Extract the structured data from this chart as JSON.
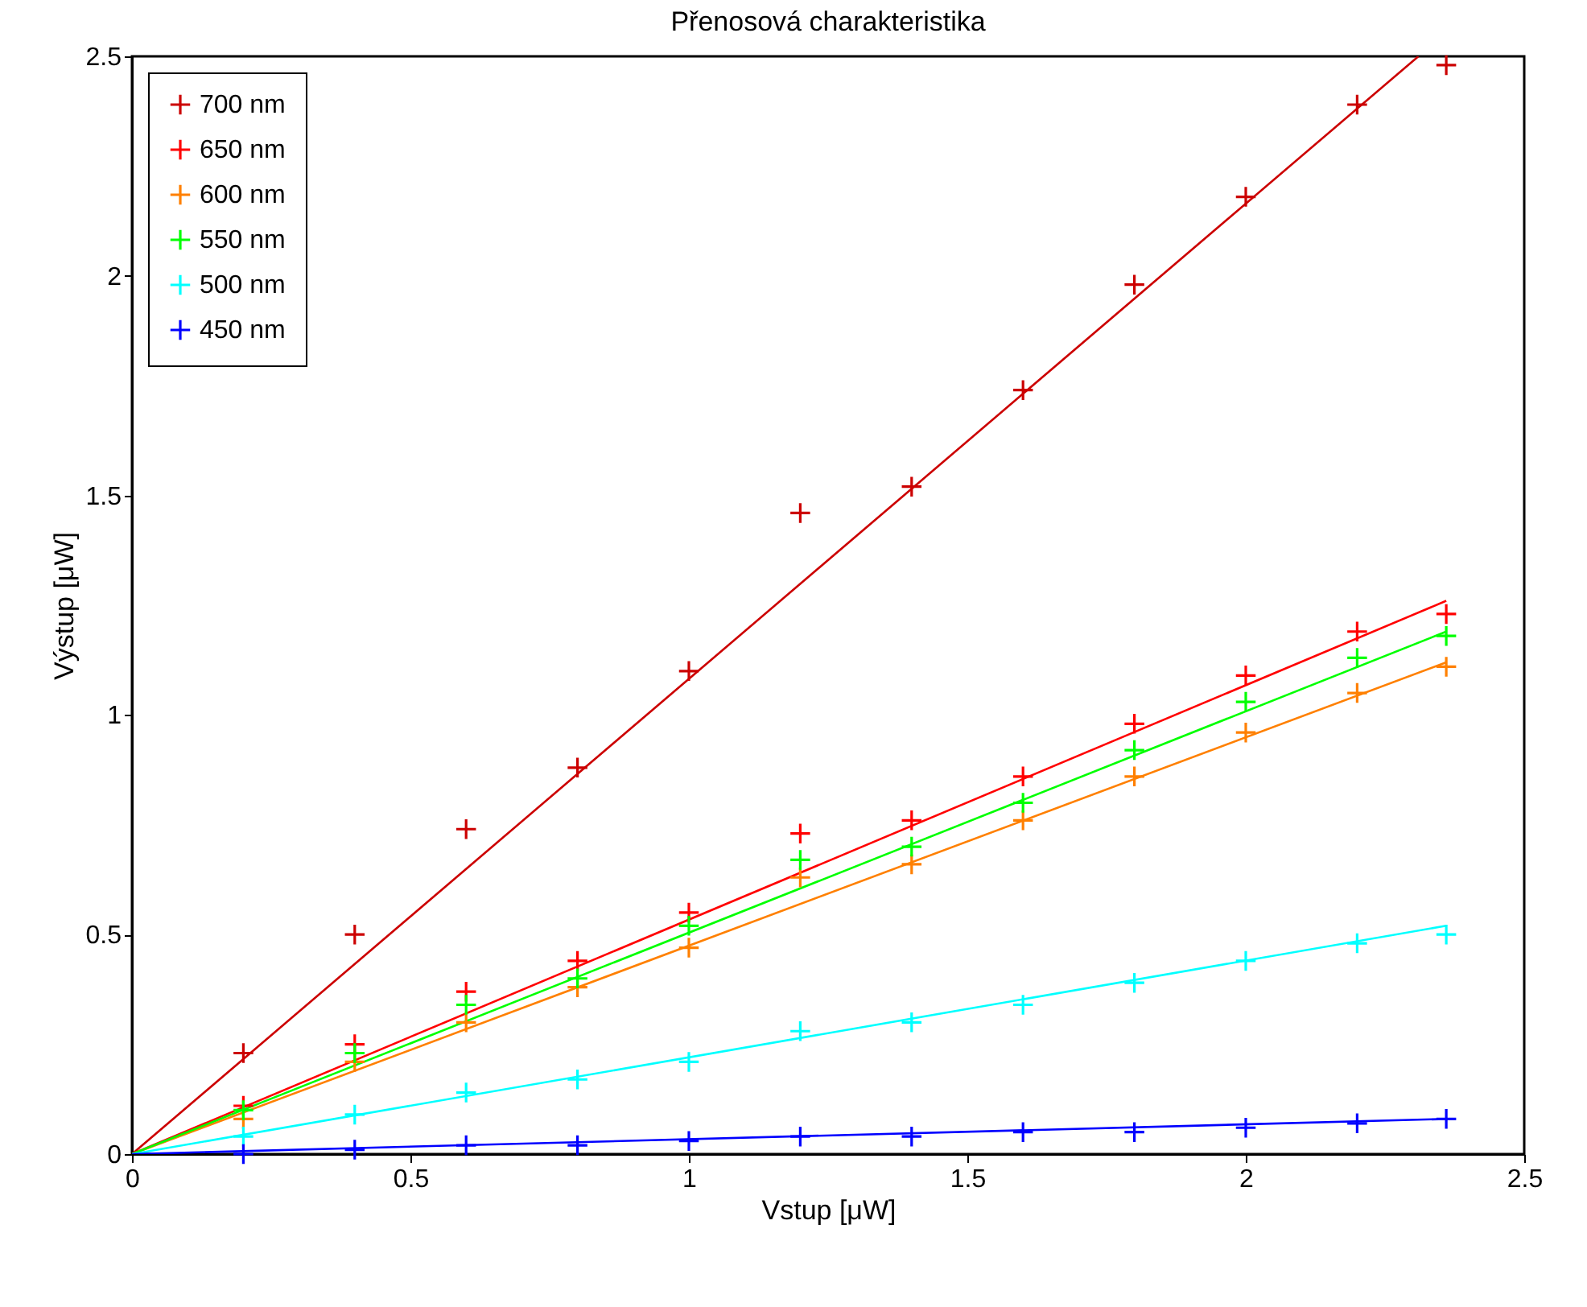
{
  "chart_data": {
    "type": "scatter",
    "title": "Přenosová charakteristika",
    "xlabel": "Vstup [μW]",
    "ylabel": "Výstup [μW]",
    "x": [
      0.2,
      0.4,
      0.6,
      0.8,
      1.0,
      1.2,
      1.4,
      1.6,
      1.8,
      2.0,
      2.2,
      2.36
    ],
    "xlim": [
      0,
      2.5
    ],
    "xticks": [
      0,
      0.5,
      1,
      1.5,
      2,
      2.5
    ],
    "ylim": [
      0,
      2.5
    ],
    "yticks": [
      0,
      0.5,
      1,
      1.5,
      2,
      2.5
    ],
    "grid": false,
    "legend": "top left",
    "marker": "cross",
    "series": [
      {
        "name": "700 nm",
        "color": "#cc0000",
        "values": [
          0.23,
          0.5,
          0.74,
          0.88,
          1.1,
          1.46,
          1.52,
          1.74,
          1.98,
          2.18,
          2.39,
          2.48
        ]
      },
      {
        "name": "650 nm",
        "color": "#ff0000",
        "values": [
          0.11,
          0.25,
          0.37,
          0.44,
          0.55,
          0.73,
          0.76,
          0.86,
          0.98,
          1.09,
          1.19,
          1.23
        ]
      },
      {
        "name": "600 nm",
        "color": "#ff8000",
        "values": [
          0.08,
          0.21,
          0.3,
          0.38,
          0.47,
          0.63,
          0.66,
          0.76,
          0.86,
          0.96,
          1.05,
          1.11
        ]
      },
      {
        "name": "550 nm",
        "color": "#00ff00",
        "values": [
          0.1,
          0.23,
          0.34,
          0.4,
          0.52,
          0.67,
          0.7,
          0.8,
          0.92,
          1.03,
          1.13,
          1.18
        ]
      },
      {
        "name": "500 nm",
        "color": "#00ffff",
        "values": [
          0.04,
          0.09,
          0.14,
          0.17,
          0.21,
          0.28,
          0.3,
          0.34,
          0.39,
          0.44,
          0.48,
          0.5
        ]
      },
      {
        "name": "450 nm",
        "color": "#0000ff",
        "values": [
          0.0,
          0.01,
          0.02,
          0.02,
          0.03,
          0.04,
          0.04,
          0.05,
          0.05,
          0.06,
          0.07,
          0.08
        ]
      },
      {
        "type": "line",
        "marker": "none",
        "color": "#cc0000",
        "x": [
          0,
          2.31
        ],
        "values": [
          0,
          2.5
        ]
      },
      {
        "type": "line",
        "marker": "none",
        "color": "#ff0000",
        "x": [
          0,
          2.36
        ],
        "values": [
          0,
          1.26
        ]
      },
      {
        "type": "line",
        "marker": "none",
        "color": "#ff8000",
        "x": [
          0,
          2.36
        ],
        "values": [
          0,
          1.12
        ]
      },
      {
        "type": "line",
        "marker": "none",
        "color": "#00ff00",
        "x": [
          0,
          2.36
        ],
        "values": [
          0,
          1.19
        ]
      },
      {
        "type": "line",
        "marker": "none",
        "color": "#00ffff",
        "x": [
          0,
          2.36
        ],
        "values": [
          0,
          0.52
        ]
      },
      {
        "type": "line",
        "marker": "none",
        "color": "#0000ff",
        "x": [
          0,
          2.36
        ],
        "values": [
          0,
          0.08
        ]
      }
    ]
  }
}
